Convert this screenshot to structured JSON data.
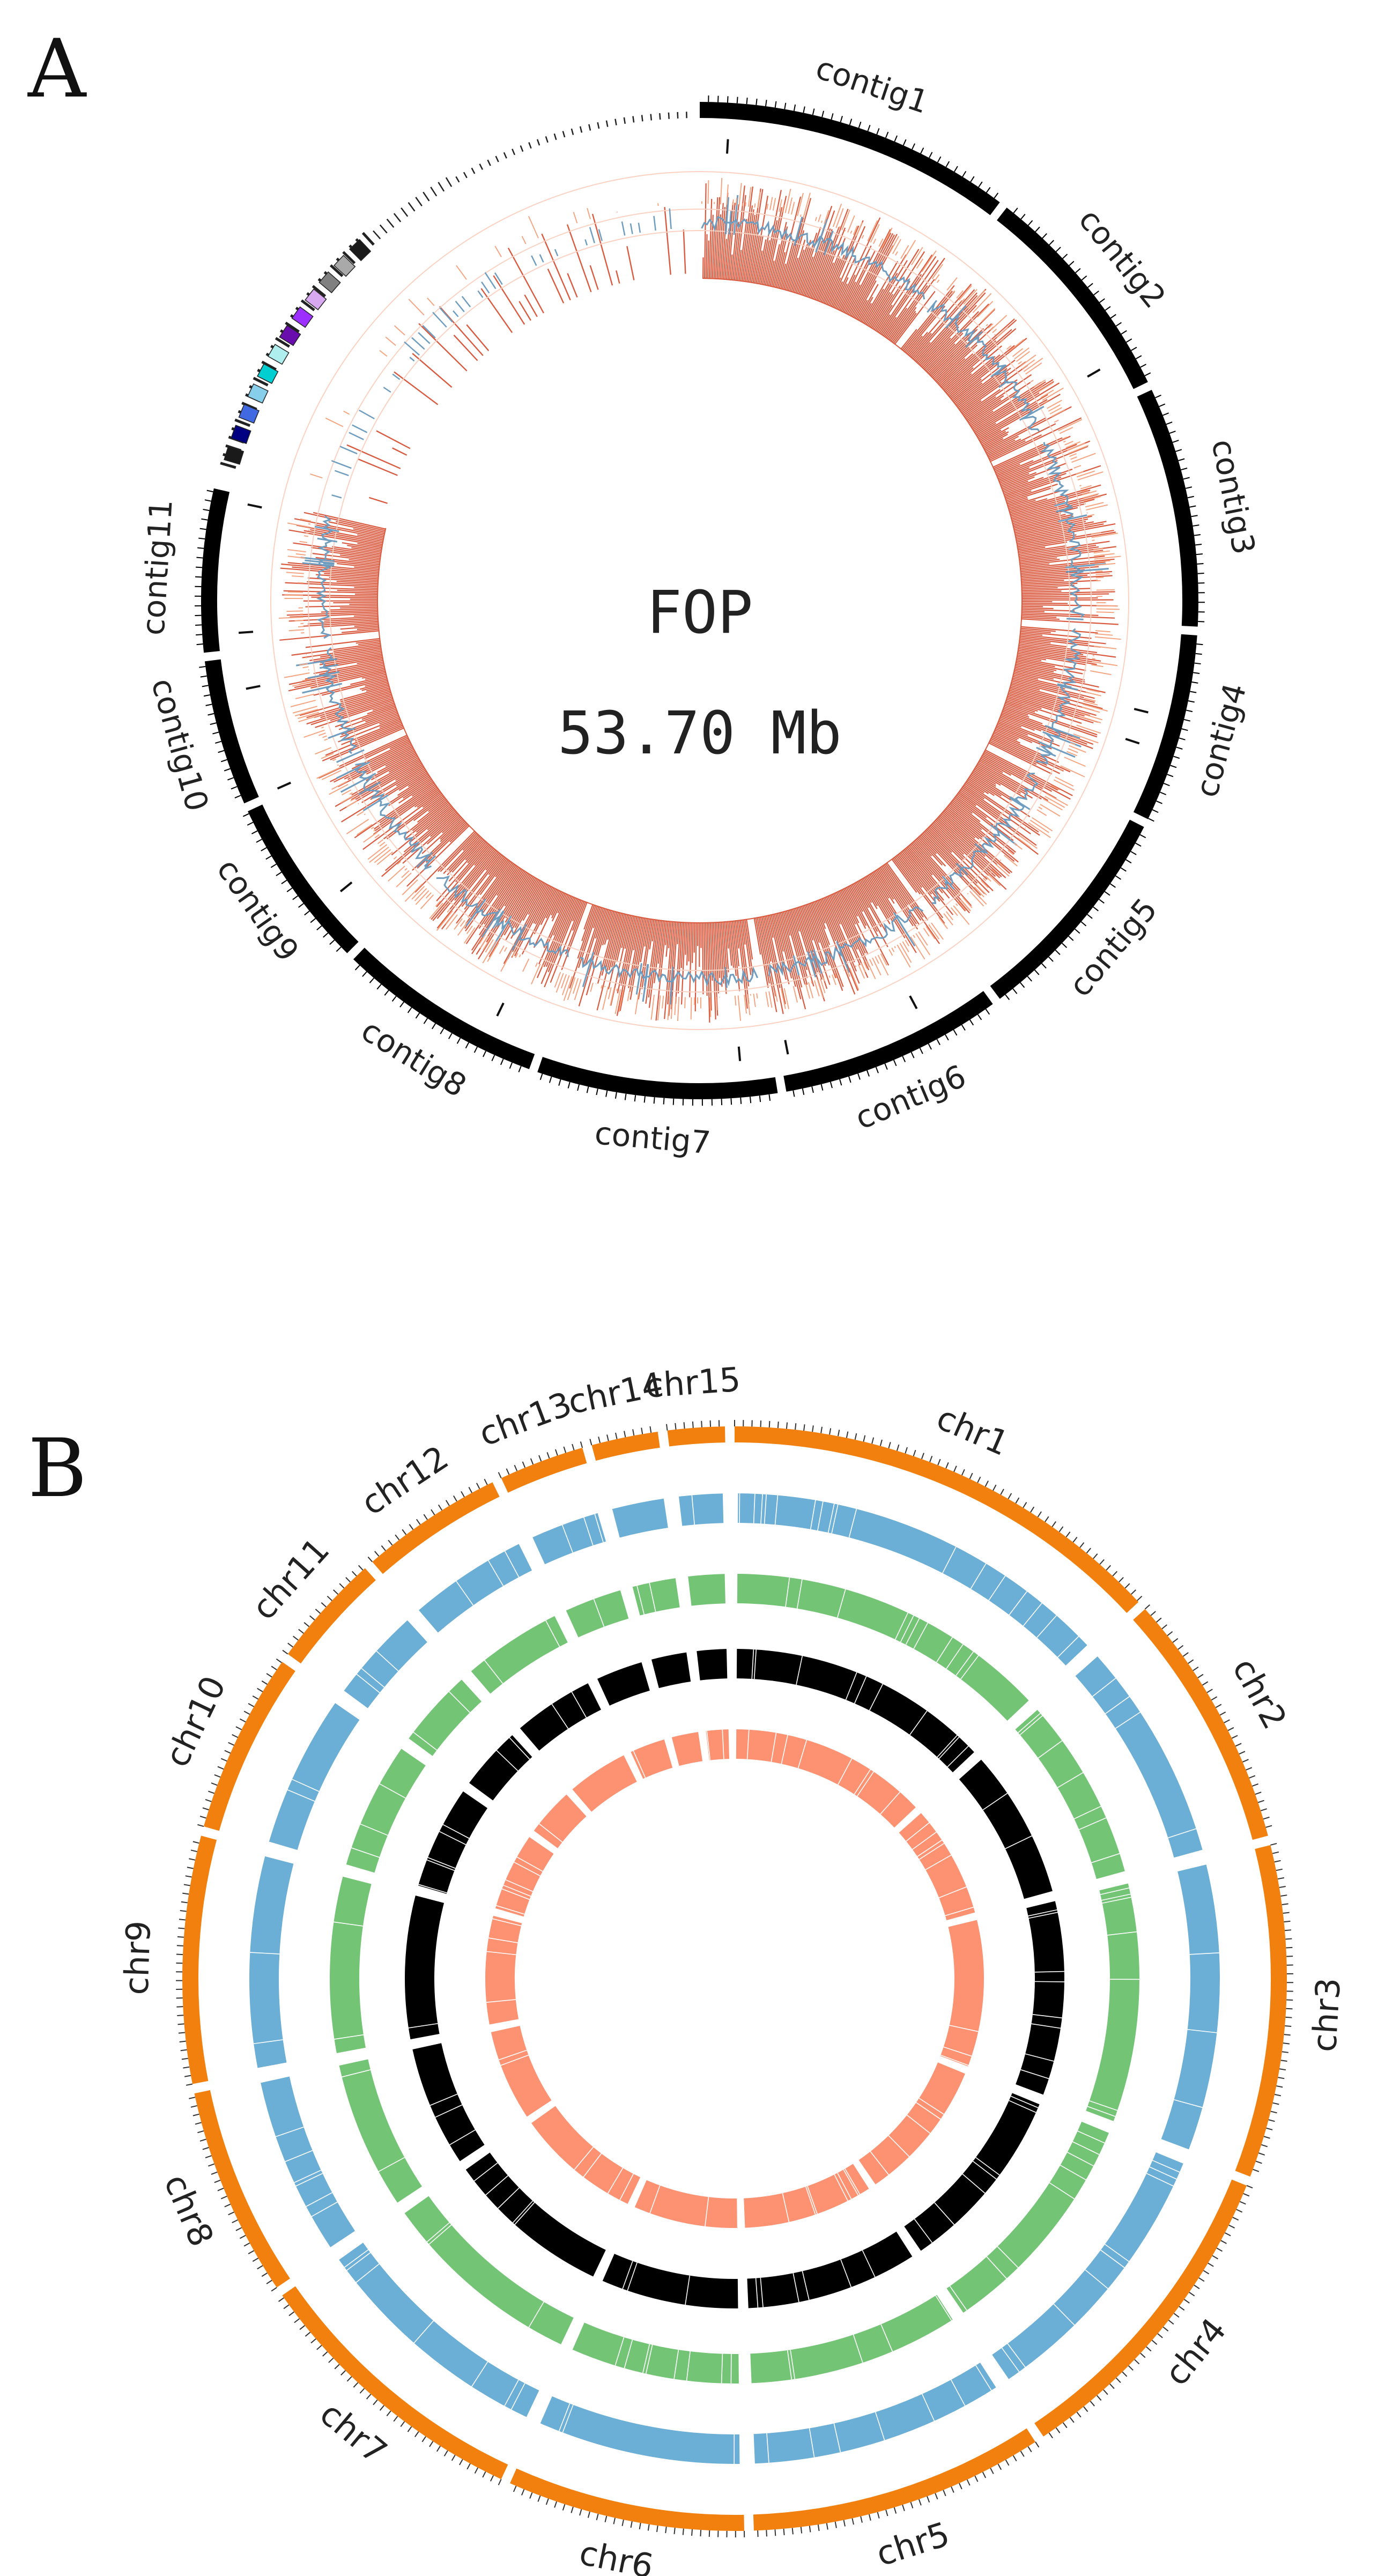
{
  "panel_a": {
    "letter": "A",
    "center_title": "FOP",
    "center_size": "53.70 Mb",
    "contigs": [
      {
        "label": "contig1",
        "start_deg": 0,
        "end_deg": 37
      },
      {
        "label": "contig2",
        "start_deg": 38,
        "end_deg": 64
      },
      {
        "label": "contig3",
        "start_deg": 65,
        "end_deg": 93
      },
      {
        "label": "contig4",
        "start_deg": 94,
        "end_deg": 116
      },
      {
        "label": "contig5",
        "start_deg": 117,
        "end_deg": 143
      },
      {
        "label": "contig6",
        "start_deg": 144,
        "end_deg": 170
      },
      {
        "label": "contig7",
        "start_deg": 171,
        "end_deg": 199
      },
      {
        "label": "contig8",
        "start_deg": 200,
        "end_deg": 224
      },
      {
        "label": "contig9",
        "start_deg": 225,
        "end_deg": 245
      },
      {
        "label": "contig10",
        "start_deg": 246,
        "end_deg": 263
      },
      {
        "label": "contig11",
        "start_deg": 264,
        "end_deg": 283
      }
    ],
    "small_contig_colors": [
      "#1a1a1a",
      "#000080",
      "#4169e1",
      "#87ceeb",
      "#00ced1",
      "#afeeee",
      "#6a0dad",
      "#9b30ff",
      "#d8a8f0",
      "#808080",
      "#a9a9a9",
      "#1a1a1a"
    ],
    "colors": {
      "contig": "#000000",
      "density": "#d95a3f",
      "density_light": "#f4a582",
      "line": "#6f9dbf",
      "gap_ring": "#fbd2c2"
    }
  },
  "panel_b": {
    "letter": "B",
    "chromosomes": [
      {
        "label": "chr1",
        "start_deg": 0,
        "end_deg": 47
      },
      {
        "label": "chr2",
        "start_deg": 48,
        "end_deg": 75
      },
      {
        "label": "chr3",
        "start_deg": 76,
        "end_deg": 111
      },
      {
        "label": "chr4",
        "start_deg": 112,
        "end_deg": 146
      },
      {
        "label": "chr5",
        "start_deg": 147,
        "end_deg": 178
      },
      {
        "label": "chr6",
        "start_deg": 179,
        "end_deg": 204
      },
      {
        "label": "chr7",
        "start_deg": 205,
        "end_deg": 235
      },
      {
        "label": "chr8",
        "start_deg": 236,
        "end_deg": 258
      },
      {
        "label": "chr9",
        "start_deg": 259,
        "end_deg": 285
      },
      {
        "label": "chr10",
        "start_deg": 286,
        "end_deg": 305
      },
      {
        "label": "chr11",
        "start_deg": 306,
        "end_deg": 318
      },
      {
        "label": "chr12",
        "start_deg": 319,
        "end_deg": 334
      },
      {
        "label": "chr13",
        "start_deg": 335,
        "end_deg": 344
      },
      {
        "label": "chr14",
        "start_deg": 345,
        "end_deg": 352
      },
      {
        "label": "chr15",
        "start_deg": 353,
        "end_deg": 359
      }
    ],
    "track_colors": [
      "#f2800f",
      "#6baed6",
      "#74c476",
      "#000000",
      "#fc9272"
    ]
  }
}
